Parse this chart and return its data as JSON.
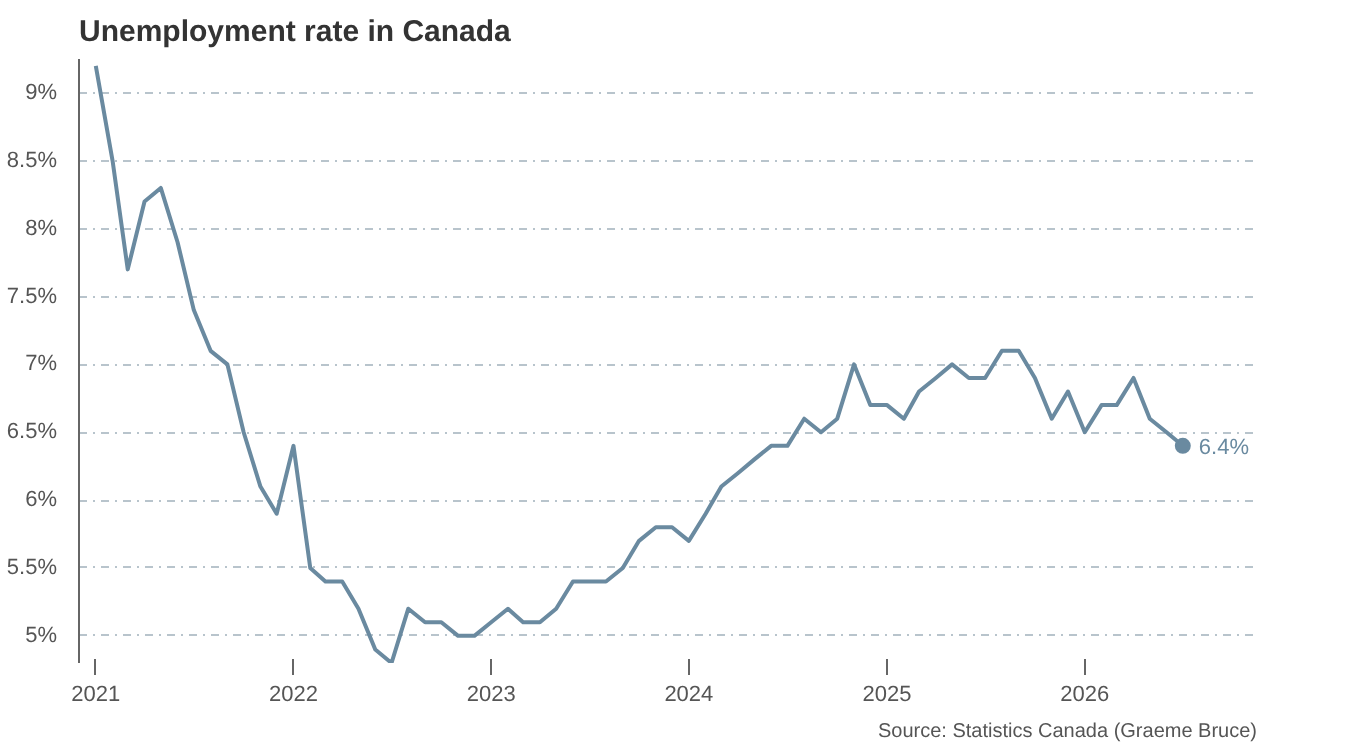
{
  "chart_data": {
    "type": "line",
    "title": "Unemployment rate in Canada",
    "x": [
      "2021-01",
      "2021-02",
      "2021-03",
      "2021-04",
      "2021-05",
      "2021-06",
      "2021-07",
      "2021-08",
      "2021-09",
      "2021-10",
      "2021-11",
      "2021-12",
      "2022-01",
      "2022-02",
      "2022-03",
      "2022-04",
      "2022-05",
      "2022-06",
      "2022-07",
      "2022-08",
      "2022-09",
      "2022-10",
      "2022-11",
      "2022-12",
      "2023-01",
      "2023-02",
      "2023-03",
      "2023-04",
      "2023-05",
      "2023-06",
      "2023-07",
      "2023-08",
      "2023-09",
      "2023-10",
      "2023-11",
      "2023-12",
      "2024-01",
      "2024-02",
      "2024-03",
      "2024-04",
      "2024-05",
      "2024-06",
      "2024-07",
      "2024-08",
      "2024-09",
      "2024-10",
      "2024-11",
      "2024-12",
      "2025-01",
      "2025-02",
      "2025-03",
      "2025-04",
      "2025-05",
      "2025-06",
      "2025-07",
      "2025-08",
      "2025-09",
      "2025-10",
      "2025-11",
      "2025-12",
      "2026-01",
      "2026-02",
      "2026-03",
      "2026-04",
      "2026-05",
      "2026-06",
      "2026-07"
    ],
    "series": [
      {
        "color": "#6a8aa0",
        "values": [
          9.2,
          8.5,
          7.7,
          8.2,
          8.3,
          7.9,
          7.4,
          7.1,
          7.0,
          6.5,
          6.1,
          5.9,
          6.4,
          5.5,
          5.4,
          5.4,
          5.2,
          4.9,
          4.8,
          5.2,
          5.1,
          5.1,
          5.0,
          5.0,
          5.1,
          5.2,
          5.1,
          5.1,
          5.2,
          5.4,
          5.4,
          5.4,
          5.5,
          5.7,
          5.8,
          5.8,
          5.7,
          5.9,
          6.1,
          6.2,
          6.3,
          6.4,
          6.4,
          6.6,
          6.5,
          6.6,
          7.0,
          6.7,
          6.7,
          6.6,
          6.8,
          6.9,
          7.0,
          6.9,
          6.9,
          7.1,
          7.1,
          6.9,
          6.6,
          6.8,
          6.5,
          6.7,
          6.7,
          6.9,
          6.6,
          6.5,
          6.4
        ]
      }
    ],
    "xlim": [
      "2020-12-01",
      "2026-11-15"
    ],
    "xticks": [
      "2021",
      "2022",
      "2023",
      "2024",
      "2025",
      "2026"
    ],
    "ylim": [
      4.8,
      9.25
    ],
    "yticks": [
      {
        "value": 5,
        "label": "5%"
      },
      {
        "value": 5.5,
        "label": "5.5%"
      },
      {
        "value": 6,
        "label": "6%"
      },
      {
        "value": 6.5,
        "label": "6.5%"
      },
      {
        "value": 7,
        "label": "7%"
      },
      {
        "value": 7.5,
        "label": "7.5%"
      },
      {
        "value": 8,
        "label": "8%"
      },
      {
        "value": 8.5,
        "label": "8.5%"
      },
      {
        "value": 9,
        "label": "9%"
      }
    ],
    "grid": "y",
    "line_style": "solid",
    "annotations": [
      {
        "text": "6.4%",
        "x": "2026-07",
        "y": 6.4
      },
      "Source: Statistics Canada (Graeme Bruce)"
    ]
  }
}
